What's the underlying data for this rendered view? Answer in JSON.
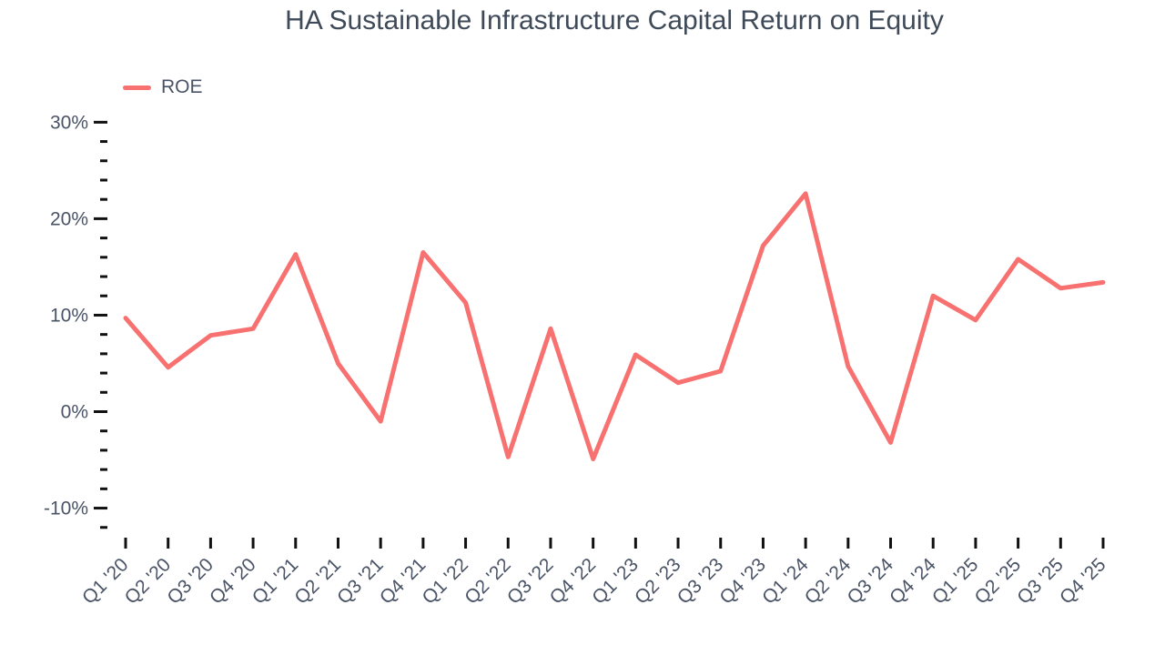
{
  "header": {
    "title": "HA Sustainable Infrastructure Capital Return on Equity"
  },
  "legend": {
    "items": [
      {
        "label": "ROE",
        "color": "#F87171"
      }
    ]
  },
  "chart_data": {
    "type": "line",
    "title": "HA Sustainable Infrastructure Capital Return on Equity",
    "categories": [
      "Q1 '20",
      "Q2 '20",
      "Q3 '20",
      "Q4 '20",
      "Q1 '21",
      "Q2 '21",
      "Q3 '21",
      "Q4 '21",
      "Q1 '22",
      "Q2 '22",
      "Q3 '22",
      "Q4 '22",
      "Q1 '23",
      "Q2 '23",
      "Q3 '23",
      "Q4 '23",
      "Q1 '24",
      "Q2 '24",
      "Q3 '24",
      "Q4 '24",
      "Q1 '25",
      "Q2 '25",
      "Q3 '25",
      "Q4 '25"
    ],
    "series": [
      {
        "name": "ROE",
        "color": "#F87171",
        "values": [
          9.7,
          4.6,
          7.9,
          8.6,
          16.3,
          5.0,
          -1.0,
          16.5,
          11.3,
          -4.7,
          8.6,
          -4.9,
          5.9,
          3.0,
          4.2,
          17.2,
          22.6,
          4.7,
          -3.2,
          12.0,
          9.5,
          15.8,
          12.8,
          13.4
        ]
      }
    ],
    "xlabel": "",
    "ylabel": "",
    "y_axis": {
      "unit": "%",
      "range": [
        -12,
        30
      ],
      "major_tick_step": 10,
      "minor_tick_step": 2,
      "major_tick_labels": [
        "30%",
        "20%",
        "10%",
        "0%",
        "-10%"
      ]
    },
    "grid": false,
    "legend_position": "top-left",
    "colors": {
      "title_text": "#3F4A59",
      "axis_text": "#4A5466",
      "tick_mark": "#111111",
      "background": "#ffffff"
    }
  }
}
